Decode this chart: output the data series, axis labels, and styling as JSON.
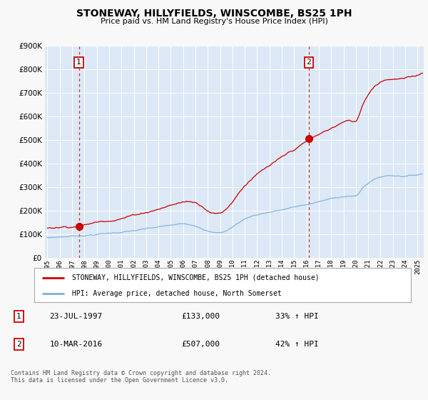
{
  "title": "STONEWAY, HILLYFIELDS, WINSCOMBE, BS25 1PH",
  "subtitle": "Price paid vs. HM Land Registry's House Price Index (HPI)",
  "background_color": "#f8f8f8",
  "plot_bg_color": "#dce8f5",
  "red_color": "#cc0000",
  "blue_color": "#7ab0d8",
  "annotation1_date": "23-JUL-1997",
  "annotation1_price": 133000,
  "annotation1_hpi": "33% ↑ HPI",
  "annotation2_date": "10-MAR-2016",
  "annotation2_price": 507000,
  "annotation2_hpi": "42% ↑ HPI",
  "legend_label1": "STONEWAY, HILLYFIELDS, WINSCOMBE, BS25 1PH (detached house)",
  "legend_label2": "HPI: Average price, detached house, North Somerset",
  "footer": "Contains HM Land Registry data © Crown copyright and database right 2024.\nThis data is licensed under the Open Government Licence v3.0.",
  "ylim": [
    0,
    900000
  ],
  "yticks": [
    0,
    100000,
    200000,
    300000,
    400000,
    500000,
    600000,
    700000,
    800000,
    900000
  ],
  "xlim_start": 1994.8,
  "xlim_end": 2025.5,
  "xticks": [
    1995,
    1996,
    1997,
    1998,
    1999,
    2000,
    2001,
    2002,
    2003,
    2004,
    2005,
    2006,
    2007,
    2008,
    2009,
    2010,
    2011,
    2012,
    2013,
    2014,
    2015,
    2016,
    2017,
    2018,
    2019,
    2020,
    2021,
    2022,
    2023,
    2024,
    2025
  ],
  "t1": 1997.55,
  "p1": 133000,
  "t2": 2016.19,
  "p2": 507000
}
